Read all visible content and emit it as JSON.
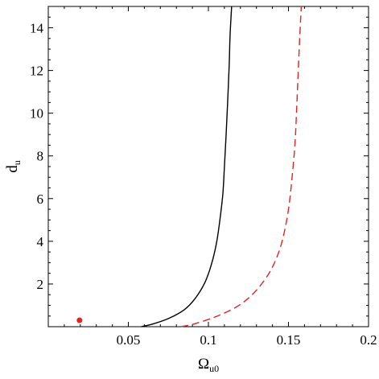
{
  "chart_data": {
    "type": "line",
    "title": "",
    "xlabel": {
      "main": "Ω",
      "sub": "u0"
    },
    "ylabel": {
      "main": "d",
      "sub": "u"
    },
    "xlim": [
      0,
      0.2
    ],
    "ylim": [
      0,
      15
    ],
    "xticks": [
      0.05,
      0.1,
      0.15,
      0.2
    ],
    "xtick_labels": [
      "0.05",
      "0.1",
      "0.15",
      "0.2"
    ],
    "yticks": [
      2,
      4,
      6,
      8,
      10,
      12,
      14
    ],
    "ytick_labels": [
      "2",
      "4",
      "6",
      "8",
      "10",
      "12",
      "14"
    ],
    "grid": false,
    "legend": "none",
    "series": [
      {
        "style": "solid",
        "color": "#000000",
        "points": [
          [
            0.058,
            0.0
          ],
          [
            0.065,
            0.12
          ],
          [
            0.075,
            0.38
          ],
          [
            0.085,
            0.8
          ],
          [
            0.092,
            1.35
          ],
          [
            0.098,
            2.1
          ],
          [
            0.102,
            2.95
          ],
          [
            0.105,
            3.9
          ],
          [
            0.107,
            4.9
          ],
          [
            0.109,
            6.2
          ],
          [
            0.11,
            7.5
          ],
          [
            0.111,
            8.9
          ],
          [
            0.112,
            10.5
          ],
          [
            0.113,
            12.3
          ],
          [
            0.1135,
            13.6
          ],
          [
            0.1145,
            15.0
          ]
        ]
      },
      {
        "style": "dashed",
        "color": "#e32222",
        "points": [
          [
            0.083,
            0.0
          ],
          [
            0.092,
            0.15
          ],
          [
            0.105,
            0.48
          ],
          [
            0.118,
            0.95
          ],
          [
            0.128,
            1.55
          ],
          [
            0.137,
            2.4
          ],
          [
            0.143,
            3.3
          ],
          [
            0.147,
            4.3
          ],
          [
            0.15,
            5.5
          ],
          [
            0.152,
            6.8
          ],
          [
            0.154,
            8.5
          ],
          [
            0.155,
            10.0
          ],
          [
            0.156,
            11.8
          ],
          [
            0.157,
            13.5
          ],
          [
            0.158,
            15.0
          ]
        ]
      }
    ],
    "points": [
      {
        "x": 0.0195,
        "y": 0.3,
        "color": "#e32222"
      }
    ]
  }
}
